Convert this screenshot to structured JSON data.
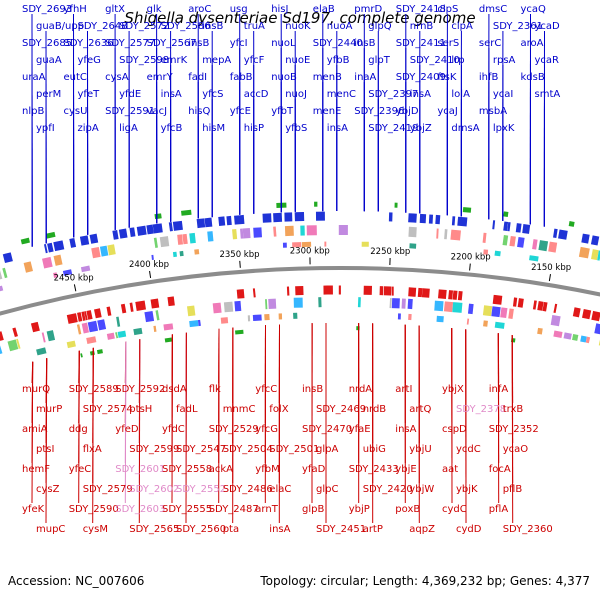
{
  "title": "Shigella dysenteriae Sd197, complete genome",
  "footer": {
    "accession": "Accession: NC_007606",
    "summary": "Topology: circular; Length: 4,369,232 bp; Genes: 4,377"
  },
  "ticks": [
    "2450 kbp",
    "2400 kbp",
    "2350 kbp",
    "2300 kbp",
    "2250 kbp",
    "2200 kbp",
    "2150 kbp"
  ],
  "colors": {
    "top_genes": "#0000cc",
    "bottom_genes": "#cc0000",
    "pseudo": "#e08ac8",
    "backbone": "#8c8c8c"
  },
  "top_labels": [
    "SDY_2693",
    "guaB/upp",
    "SDY_2685",
    "guaA",
    "uraA",
    "perM",
    "nlpB",
    "ypfI",
    "yfhH",
    "SDY_2648",
    "SDY_2636",
    "yfeG",
    "eutC",
    "yfeT",
    "cysU",
    "zipA",
    "gltX",
    "SDY_2572",
    "SDY_2577",
    "SDY_2598",
    "cysA",
    "yfdE",
    "SDY_2591",
    "ligA",
    "glk",
    "SDY_2586",
    "SDY_2567",
    "emrK",
    "emrY",
    "insA",
    "vacJ",
    "yfcB",
    "aroC",
    "insB",
    "insB",
    "mepA",
    "fadI",
    "yfcS",
    "hisQ",
    "hisM",
    "usg",
    "truA",
    "yfcI",
    "yfcF",
    "fabB",
    "accD",
    "yfcE",
    "hisP",
    "hisJ",
    "nuoK",
    "nuoL",
    "nuoE",
    "nuoB",
    "nuoJ",
    "yfbT",
    "yfbS",
    "elaB",
    "nuoA",
    "SDY_2440",
    "yfbB",
    "menB",
    "menC",
    "menE",
    "insA",
    "pmrD",
    "glpQ",
    "insB",
    "glpT",
    "inaA",
    "SDY_2397",
    "SDY_2396",
    "SDY_2419",
    "SDY_2418",
    "nrnB",
    "SDY_2411",
    "SDY_2410",
    "SDY_2409",
    "insA",
    "ybjD",
    "ybjZ",
    "clpS",
    "clpA",
    "serS",
    "lrp",
    "ftsK",
    "lolA",
    "ycaJ",
    "dmsA",
    "dmsC",
    "SDY_2361",
    "serC",
    "rpsA",
    "ihfB",
    "ycaI",
    "msbA",
    "lpxK",
    "ycaQ",
    "ycaD",
    "aroA",
    "ycaR",
    "kdsB",
    "smtA"
  ],
  "bottom_labels": [
    "murQ",
    "murP",
    "amiA",
    "ptsI",
    "hemF",
    "cysZ",
    "yfeK",
    "mupC",
    "SDY_2589",
    "SDY_2574",
    "ddg",
    "flxA",
    "yfeC",
    "SDY_2579",
    "SDY_2590",
    "cysM",
    "SDY_2592",
    "ptsH",
    "yfeD",
    "SDY_2599",
    "SDY_2601",
    "SDY_2602",
    "SDY_2603",
    "SDY_2565",
    "dsdA",
    "fadL",
    "yfdC",
    "SDY_2547",
    "SDY_2558",
    "SDY_2552",
    "SDY_2555",
    "SDY_2560",
    "flk",
    "mnmC",
    "SDY_2529",
    "SDY_2504",
    "ackA",
    "SDY_2486",
    "SDY_2487",
    "pta",
    "yfcC",
    "folX",
    "yfcG",
    "SDY_2501",
    "yfbM",
    "elaC",
    "arnT",
    "insA",
    "insB",
    "SDY_2469",
    "SDY_2470",
    "glpA",
    "yfaD",
    "glpC",
    "glpB",
    "SDY_2451",
    "nrdA",
    "nrdB",
    "yfaE",
    "ubiG",
    "SDY_2433",
    "SDY_2420",
    "ybjP",
    "artP",
    "artI",
    "artQ",
    "insA",
    "ybjU",
    "ybjE",
    "ybjW",
    "poxB",
    "aqpZ",
    "ybjX",
    "SDY_2378",
    "cspD",
    "ycdC",
    "aat",
    "ybjK",
    "cydC",
    "cydD",
    "infA",
    "trxB",
    "SDY_2352",
    "ycaO",
    "focA",
    "pflB",
    "pflA",
    "SDY_2360"
  ],
  "pseudo_labels": [
    "SDY_2552",
    "SDY_2601",
    "SDY_2602",
    "SDY_2603",
    "SDY_2378"
  ]
}
